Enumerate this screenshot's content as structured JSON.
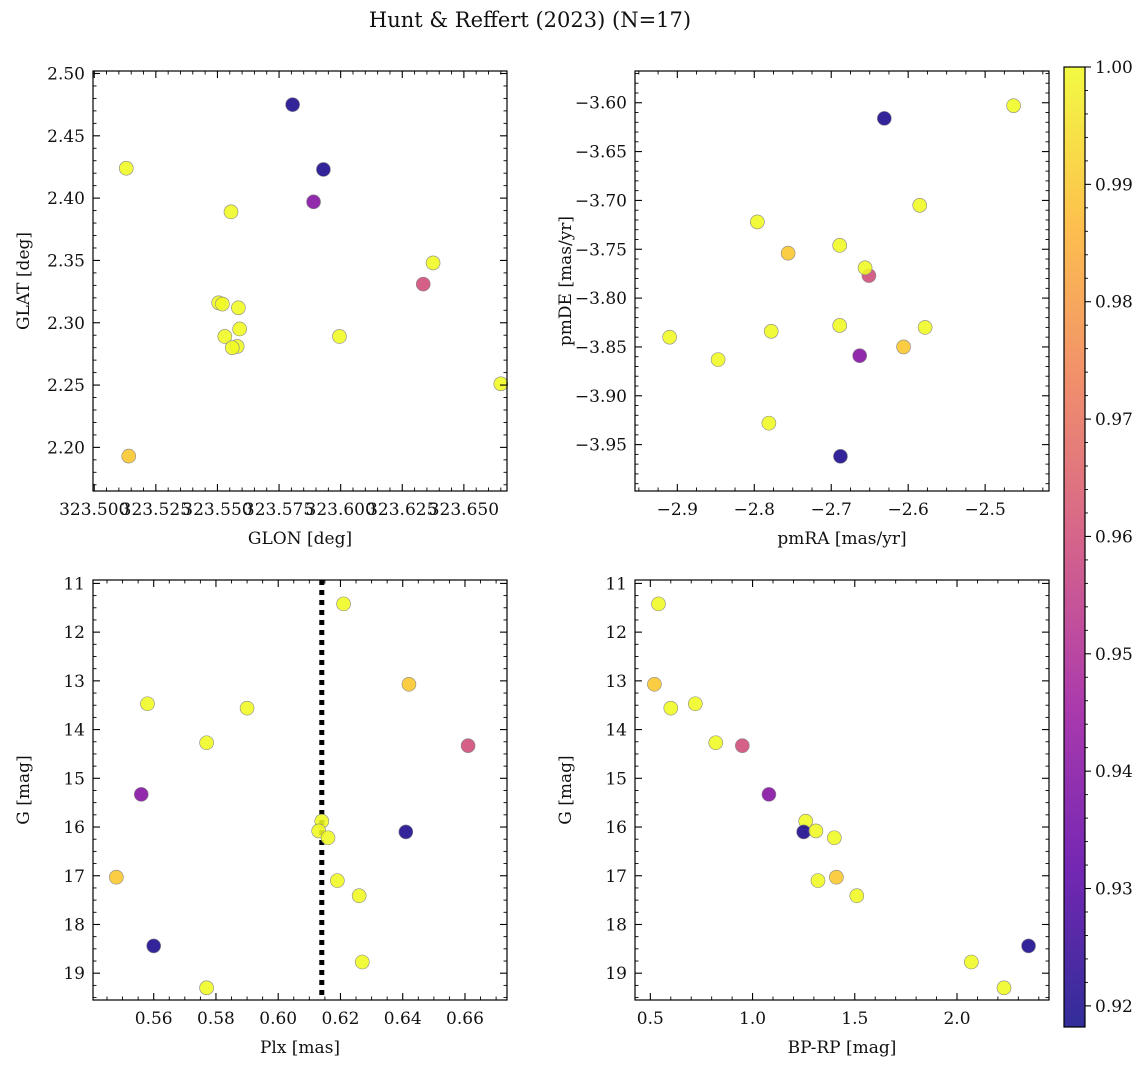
{
  "title": "Hunt & Reffert (2023) (N=17)",
  "colorbar": {
    "range": [
      0.9182,
      1.0
    ],
    "ticks": [
      0.92,
      0.93,
      0.94,
      0.95,
      0.96,
      0.97,
      0.98,
      0.99,
      1.0
    ],
    "tick_labels": [
      "0.92",
      "0.93",
      "0.94",
      "0.95",
      "0.96",
      "0.97",
      "0.98",
      "0.99",
      "1.00"
    ],
    "colormap": "plasma",
    "stops": [
      "#0d0887",
      "#5c01a6",
      "#9c179e",
      "#cc4778",
      "#ed7953",
      "#fdb42f",
      "#f0f921"
    ]
  },
  "chart_data": [
    {
      "type": "scatter",
      "id": "glon-glat",
      "xlabel": "GLON [deg]",
      "ylabel": "GLAT [deg]",
      "xlim": [
        323.4995,
        323.6675
      ],
      "ylim": [
        2.165,
        2.502
      ],
      "xticks": [
        323.5,
        323.525,
        323.55,
        323.575,
        323.6,
        323.625,
        323.65
      ],
      "xtick_labels": [
        "323.500",
        "323.525",
        "323.550",
        "323.575",
        "323.600",
        "323.625",
        "323.650"
      ],
      "yticks": [
        2.2,
        2.25,
        2.3,
        2.35,
        2.4,
        2.45,
        2.5
      ],
      "ytick_labels": [
        "2.20",
        "2.25",
        "2.30",
        "2.35",
        "2.40",
        "2.45",
        "2.50"
      ],
      "points": [
        {
          "x": 323.5805,
          "y": 2.475,
          "c": 0.92
        },
        {
          "x": 323.593,
          "y": 2.423,
          "c": 0.92
        },
        {
          "x": 323.589,
          "y": 2.397,
          "c": 0.94
        },
        {
          "x": 323.6335,
          "y": 2.331,
          "c": 0.96
        },
        {
          "x": 323.514,
          "y": 2.193,
          "c": 0.99
        },
        {
          "x": 323.513,
          "y": 2.424,
          "c": 1.0
        },
        {
          "x": 323.5555,
          "y": 2.389,
          "c": 1.0
        },
        {
          "x": 323.6375,
          "y": 2.348,
          "c": 1.0
        },
        {
          "x": 323.5505,
          "y": 2.316,
          "c": 1.0
        },
        {
          "x": 323.552,
          "y": 2.315,
          "c": 1.0
        },
        {
          "x": 323.5585,
          "y": 2.312,
          "c": 1.0
        },
        {
          "x": 323.553,
          "y": 2.289,
          "c": 1.0
        },
        {
          "x": 323.559,
          "y": 2.295,
          "c": 1.0
        },
        {
          "x": 323.558,
          "y": 2.281,
          "c": 1.0
        },
        {
          "x": 323.556,
          "y": 2.28,
          "c": 1.0
        },
        {
          "x": 323.5995,
          "y": 2.289,
          "c": 1.0
        },
        {
          "x": 323.665,
          "y": 2.251,
          "c": 1.0
        }
      ]
    },
    {
      "type": "scatter",
      "id": "pmra-pmde",
      "xlabel": "pmRA [mas/yr]",
      "ylabel": "pmDE [mas/yr]",
      "xlim": [
        -2.955,
        -2.417
      ],
      "ylim": [
        -3.9975,
        -3.5675
      ],
      "xticks": [
        -2.9,
        -2.8,
        -2.7,
        -2.6,
        -2.5
      ],
      "xtick_labels": [
        "−2.9",
        "−2.8",
        "−2.7",
        "−2.6",
        "−2.5"
      ],
      "yticks": [
        -3.95,
        -3.9,
        -3.85,
        -3.8,
        -3.75,
        -3.7,
        -3.65,
        -3.6
      ],
      "ytick_labels": [
        "−3.95",
        "−3.90",
        "−3.85",
        "−3.80",
        "−3.75",
        "−3.70",
        "−3.65",
        "−3.60"
      ],
      "points": [
        {
          "x": -2.631,
          "y": -3.616,
          "c": 0.92
        },
        {
          "x": -2.688,
          "y": -3.962,
          "c": 0.92
        },
        {
          "x": -2.663,
          "y": -3.859,
          "c": 0.94
        },
        {
          "x": -2.651,
          "y": -3.777,
          "c": 0.96
        },
        {
          "x": -2.756,
          "y": -3.754,
          "c": 0.99
        },
        {
          "x": -2.606,
          "y": -3.85,
          "c": 0.99
        },
        {
          "x": -2.463,
          "y": -3.603,
          "c": 1.0
        },
        {
          "x": -2.585,
          "y": -3.705,
          "c": 1.0
        },
        {
          "x": -2.796,
          "y": -3.722,
          "c": 1.0
        },
        {
          "x": -2.689,
          "y": -3.746,
          "c": 1.0
        },
        {
          "x": -2.656,
          "y": -3.769,
          "c": 1.0
        },
        {
          "x": -2.91,
          "y": -3.84,
          "c": 1.0
        },
        {
          "x": -2.847,
          "y": -3.863,
          "c": 1.0
        },
        {
          "x": -2.778,
          "y": -3.834,
          "c": 1.0
        },
        {
          "x": -2.689,
          "y": -3.828,
          "c": 1.0
        },
        {
          "x": -2.578,
          "y": -3.83,
          "c": 1.0
        },
        {
          "x": -2.781,
          "y": -3.928,
          "c": 1.0
        }
      ]
    },
    {
      "type": "scatter",
      "id": "plx-g",
      "xlabel": "Plx [mas]",
      "ylabel": "G [mag]",
      "xlim": [
        0.5405,
        0.6735
      ],
      "ylim": [
        19.55,
        10.93
      ],
      "xticks": [
        0.54,
        0.56,
        0.58,
        0.6,
        0.62,
        0.64,
        0.66
      ],
      "xtick_labels": [
        "0.54",
        "0.56",
        "0.58",
        "0.60",
        "0.62",
        "0.64",
        "0.66"
      ],
      "yticks": [
        11,
        12,
        13,
        14,
        15,
        16,
        17,
        18,
        19
      ],
      "ytick_labels": [
        "11",
        "12",
        "13",
        "14",
        "15",
        "16",
        "17",
        "18",
        "19"
      ],
      "vline": 0.614,
      "points": [
        {
          "x": 0.621,
          "y": 11.42,
          "c": 1.0
        },
        {
          "x": 0.642,
          "y": 13.07,
          "c": 0.99
        },
        {
          "x": 0.558,
          "y": 13.47,
          "c": 1.0
        },
        {
          "x": 0.59,
          "y": 13.56,
          "c": 1.0
        },
        {
          "x": 0.577,
          "y": 14.27,
          "c": 1.0
        },
        {
          "x": 0.661,
          "y": 14.33,
          "c": 0.96
        },
        {
          "x": 0.556,
          "y": 15.33,
          "c": 0.94
        },
        {
          "x": 0.614,
          "y": 15.88,
          "c": 1.0
        },
        {
          "x": 0.613,
          "y": 16.08,
          "c": 1.0
        },
        {
          "x": 0.641,
          "y": 16.1,
          "c": 0.92
        },
        {
          "x": 0.616,
          "y": 16.22,
          "c": 1.0
        },
        {
          "x": 0.548,
          "y": 17.03,
          "c": 0.99
        },
        {
          "x": 0.619,
          "y": 17.1,
          "c": 1.0
        },
        {
          "x": 0.626,
          "y": 17.41,
          "c": 1.0
        },
        {
          "x": 0.56,
          "y": 18.44,
          "c": 0.92
        },
        {
          "x": 0.627,
          "y": 18.77,
          "c": 1.0
        },
        {
          "x": 0.577,
          "y": 19.3,
          "c": 1.0
        }
      ]
    },
    {
      "type": "scatter",
      "id": "bprp-g",
      "xlabel": "BP-RP [mag]",
      "ylabel": "G [mag]",
      "xlim": [
        0.425,
        2.45
      ],
      "ylim": [
        19.55,
        10.93
      ],
      "xticks": [
        0.5,
        1.0,
        1.5,
        2.0
      ],
      "xtick_labels": [
        "0.5",
        "1.0",
        "1.5",
        "2.0"
      ],
      "yticks": [
        11,
        12,
        13,
        14,
        15,
        16,
        17,
        18,
        19
      ],
      "ytick_labels": [
        "11",
        "12",
        "13",
        "14",
        "15",
        "16",
        "17",
        "18",
        "19"
      ],
      "points": [
        {
          "x": 0.54,
          "y": 11.42,
          "c": 1.0
        },
        {
          "x": 0.52,
          "y": 13.07,
          "c": 0.99
        },
        {
          "x": 0.72,
          "y": 13.47,
          "c": 1.0
        },
        {
          "x": 0.6,
          "y": 13.56,
          "c": 1.0
        },
        {
          "x": 0.82,
          "y": 14.27,
          "c": 1.0
        },
        {
          "x": 0.95,
          "y": 14.33,
          "c": 0.96
        },
        {
          "x": 1.08,
          "y": 15.33,
          "c": 0.94
        },
        {
          "x": 1.26,
          "y": 15.88,
          "c": 1.0
        },
        {
          "x": 1.25,
          "y": 16.1,
          "c": 0.92
        },
        {
          "x": 1.31,
          "y": 16.08,
          "c": 1.0
        },
        {
          "x": 1.4,
          "y": 16.22,
          "c": 1.0
        },
        {
          "x": 1.41,
          "y": 17.03,
          "c": 0.99
        },
        {
          "x": 1.32,
          "y": 17.1,
          "c": 1.0
        },
        {
          "x": 1.51,
          "y": 17.41,
          "c": 1.0
        },
        {
          "x": 2.35,
          "y": 18.44,
          "c": 0.92
        },
        {
          "x": 2.07,
          "y": 18.77,
          "c": 1.0
        },
        {
          "x": 2.23,
          "y": 19.3,
          "c": 1.0
        }
      ]
    }
  ]
}
